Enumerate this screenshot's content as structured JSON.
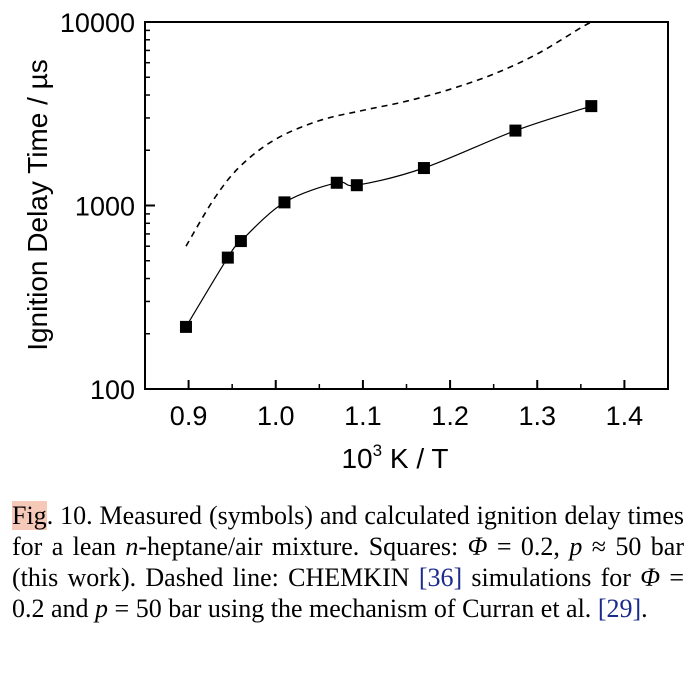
{
  "chart_data": {
    "type": "scatter",
    "xlabel": "10",
    "xlabel_sup": "3",
    "xlabel_unit": " K / T",
    "ylabel": "Ignition Delay Time / µs",
    "xlim": [
      0.85,
      1.45
    ],
    "ylim": [
      100,
      10000
    ],
    "yscale": "log",
    "xticks": [
      "0.9",
      "1.0",
      "1.1",
      "1.2",
      "1.3",
      "1.4"
    ],
    "yticks": [
      "100",
      "1000",
      "10000"
    ],
    "grid": false,
    "series": [
      {
        "style": "squares-with-solid-fit",
        "x": [
          0.897,
          0.945,
          0.96,
          1.01,
          1.07,
          1.093,
          1.17,
          1.275,
          1.362
        ],
        "y": [
          218,
          520,
          640,
          1040,
          1330,
          1290,
          1600,
          2560,
          3480
        ]
      },
      {
        "style": "dashed-line",
        "x": [
          0.897,
          0.93,
          0.96,
          1.0,
          1.05,
          1.1,
          1.15,
          1.2,
          1.25,
          1.3,
          1.35,
          1.362
        ],
        "y": [
          600,
          1100,
          1650,
          2300,
          2900,
          3300,
          3700,
          4300,
          5200,
          6700,
          9300,
          10000
        ]
      }
    ]
  },
  "caption": {
    "fig_word": "Fig",
    "p1": ". 10. Measured (symbols) and calculated ignition delay times for a lean ",
    "n_italic": "n",
    "p2": "-heptane/air mixture. Squares: ",
    "phi1": "Φ",
    "p3": " = 0.2, ",
    "p_italic1": "p",
    "p4": " ≈ 50 bar (this work). Dashed line: CHEMKIN ",
    "ref1": "[36]",
    "p5": " simulations for ",
    "phi2": "Φ",
    "p6": " = 0.2 and ",
    "p_italic2": "p",
    "p7": " = 50 bar using the mechanism of Curran et al. ",
    "ref2": "[29]",
    "p8": "."
  }
}
